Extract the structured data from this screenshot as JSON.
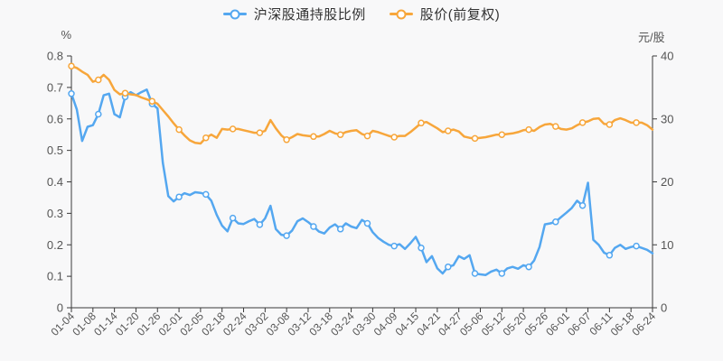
{
  "chart_data": {
    "type": "line",
    "title": "",
    "legend_position": "top",
    "grid": false,
    "marker_every": 5,
    "marker": {
      "shape": "circle",
      "fill": "#ffffff"
    },
    "axis_style": {
      "line_color": "#3a3a3a",
      "tick_text_color": "#555555",
      "background": "#f8f8f9"
    },
    "x_axis": {
      "labels": [
        "01-04",
        "01-08",
        "01-14",
        "01-20",
        "01-26",
        "02-01",
        "02-05",
        "02-18",
        "02-24",
        "03-02",
        "03-08",
        "03-12",
        "03-18",
        "03-24",
        "03-30",
        "04-09",
        "04-15",
        "04-21",
        "04-27",
        "05-06",
        "05-12",
        "05-20",
        "05-26",
        "06-01",
        "06-07",
        "06-11",
        "06-18",
        "06-24"
      ],
      "points_per_label": 4,
      "rotation": -45
    },
    "left_axis": {
      "title": "%",
      "range": [
        0,
        0.8
      ],
      "tick_step": 0.1,
      "tick_labels": [
        "0.8",
        "0.7",
        "0.6",
        "0.5",
        "0.4",
        "0.3",
        "0.2",
        "0.1",
        "0"
      ]
    },
    "right_axis": {
      "title": "元/股",
      "range": [
        0,
        40
      ],
      "tick_step": 10,
      "tick_labels": [
        "40",
        "30",
        "20",
        "10",
        "0"
      ]
    },
    "series": [
      {
        "name": "沪深股通持股比例",
        "axis": "left",
        "unit": "%",
        "color": "#54a7f0",
        "values": [
          0.68,
          0.63,
          0.53,
          0.575,
          0.58,
          0.615,
          0.675,
          0.68,
          0.615,
          0.605,
          0.67,
          0.685,
          0.675,
          0.685,
          0.693,
          0.648,
          0.633,
          0.46,
          0.355,
          0.338,
          0.352,
          0.364,
          0.358,
          0.367,
          0.365,
          0.36,
          0.34,
          0.295,
          0.261,
          0.243,
          0.285,
          0.268,
          0.266,
          0.275,
          0.282,
          0.264,
          0.284,
          0.324,
          0.25,
          0.232,
          0.229,
          0.245,
          0.275,
          0.284,
          0.272,
          0.258,
          0.242,
          0.236,
          0.255,
          0.265,
          0.25,
          0.268,
          0.258,
          0.253,
          0.279,
          0.268,
          0.24,
          0.222,
          0.21,
          0.2,
          0.196,
          0.202,
          0.187,
          0.205,
          0.225,
          0.19,
          0.145,
          0.164,
          0.125,
          0.109,
          0.13,
          0.135,
          0.164,
          0.155,
          0.167,
          0.109,
          0.106,
          0.104,
          0.115,
          0.121,
          0.109,
          0.125,
          0.13,
          0.124,
          0.135,
          0.13,
          0.15,
          0.193,
          0.265,
          0.268,
          0.273,
          0.288,
          0.302,
          0.317,
          0.34,
          0.325,
          0.397,
          0.216,
          0.2,
          0.175,
          0.167,
          0.19,
          0.2,
          0.187,
          0.193,
          0.196,
          0.19,
          0.184,
          0.173
        ]
      },
      {
        "name": "股价(前复权)",
        "axis": "right",
        "unit": "元/股",
        "color": "#f7a63b",
        "values": [
          38.4,
          38.1,
          37.5,
          37.0,
          35.9,
          36.2,
          37.0,
          36.2,
          34.6,
          33.9,
          34.1,
          33.9,
          33.8,
          33.4,
          33.1,
          32.8,
          32.4,
          31.4,
          30.4,
          29.3,
          28.3,
          27.4,
          26.6,
          26.2,
          26.1,
          27.0,
          27.5,
          27.0,
          28.4,
          28.3,
          28.4,
          28.4,
          28.2,
          28.0,
          27.8,
          27.8,
          28.1,
          29.8,
          28.5,
          27.4,
          26.7,
          27.1,
          27.6,
          27.4,
          27.3,
          27.2,
          27.2,
          27.6,
          28.1,
          27.7,
          27.5,
          27.9,
          28.1,
          28.2,
          27.6,
          27.3,
          28.1,
          27.9,
          27.6,
          27.3,
          27.1,
          27.3,
          27.3,
          27.9,
          28.6,
          29.35,
          29.5,
          29.0,
          28.5,
          27.9,
          28.1,
          28.3,
          28.0,
          27.2,
          27.0,
          26.9,
          27.0,
          27.1,
          27.3,
          27.5,
          27.5,
          27.6,
          27.7,
          27.9,
          28.2,
          28.3,
          28.1,
          28.7,
          29.1,
          29.2,
          28.8,
          28.4,
          28.3,
          28.5,
          29.0,
          29.4,
          29.6,
          30.0,
          30.1,
          29.2,
          29.1,
          29.8,
          30.1,
          29.8,
          29.4,
          29.4,
          29.4,
          29.0,
          28.3
        ]
      }
    ]
  }
}
